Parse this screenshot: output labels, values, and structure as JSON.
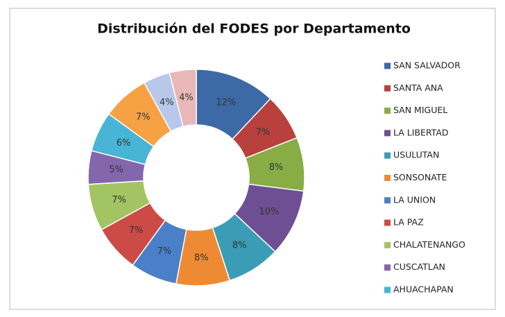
{
  "chart_data": {
    "type": "donut",
    "title": "Distribución del FODES por Departamento",
    "categories": [
      "SAN SALVADOR",
      "SANTA ANA",
      "SAN MIGUEL",
      "LA LIBERTAD",
      "USULUTAN",
      "SONSONATE",
      "LA UNION",
      "LA PAZ",
      "CHALATENANGO",
      "CUSCATLAN",
      "AHUACHAPAN",
      null,
      null,
      null
    ],
    "values": [
      12,
      7,
      8,
      10,
      8,
      8,
      7,
      7,
      7,
      5,
      6,
      7,
      4,
      4
    ],
    "value_labels": [
      "12%",
      "7%",
      "8%",
      "10%",
      "8%",
      "8%",
      "7%",
      "7%",
      "7%",
      "5%",
      "6%",
      "7%",
      "4%",
      "4%"
    ],
    "colors": [
      "#3d69a6",
      "#b8413e",
      "#88ad44",
      "#6e4f94",
      "#3b9db5",
      "#ef8a34",
      "#4a80c8",
      "#cc4b47",
      "#a3c463",
      "#8466ad",
      "#48b4d6",
      "#f7a145",
      "#b7c8ea",
      "#e9b7b7"
    ],
    "legend": "right"
  }
}
